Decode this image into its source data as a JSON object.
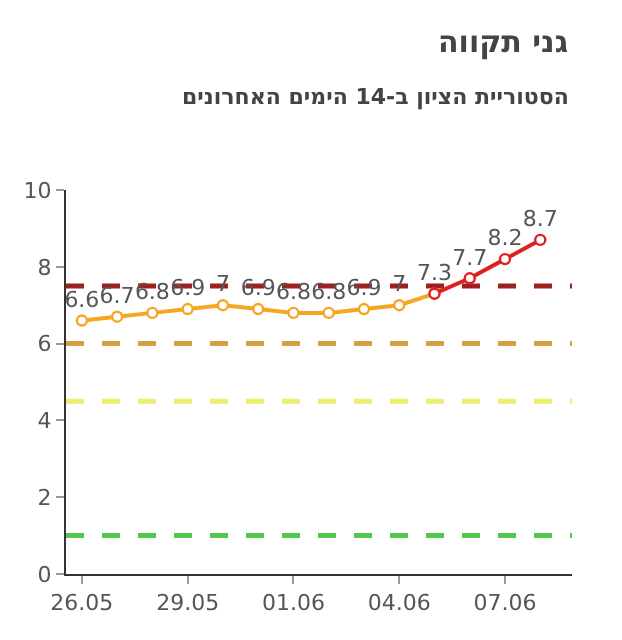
{
  "chart_data": {
    "type": "line",
    "title": "גני תקווה",
    "subtitle": "הסטוריית הציון ב-14 הימים האחרונים",
    "categories": [
      "26.05",
      null,
      null,
      "29.05",
      null,
      null,
      "01.06",
      null,
      null,
      "04.06",
      null,
      null,
      "07.06",
      null
    ],
    "series": [
      {
        "color": "#f5a623",
        "values": [
          6.6,
          6.7,
          6.8,
          6.9,
          7,
          6.9,
          6.8,
          6.8,
          6.9,
          7,
          7.3,
          null,
          null,
          null
        ],
        "value_labels": [
          "6.6",
          "6.7",
          "6.8",
          "6.9",
          "7",
          "6.9",
          "6.8",
          "6.8",
          "6.9",
          "7",
          "7.3",
          null,
          null,
          null
        ]
      },
      {
        "color": "#e02020",
        "values": [
          null,
          null,
          null,
          null,
          null,
          null,
          null,
          null,
          null,
          null,
          7.3,
          7.7,
          8.2,
          8.7
        ],
        "value_labels": [
          null,
          null,
          null,
          null,
          null,
          null,
          null,
          null,
          null,
          null,
          null,
          "7.7",
          "8.2",
          "8.7"
        ]
      }
    ],
    "ylim": [
      0,
      10
    ],
    "yticks": [
      0,
      2,
      4,
      6,
      8,
      10
    ],
    "grid": false,
    "legend": false,
    "marker": "circle",
    "line_style": "solid",
    "ref_lines": [
      {
        "axis": "y",
        "value": 7.5,
        "color": "#a02020",
        "line_style": "dashed"
      },
      {
        "axis": "y",
        "value": 6,
        "color": "#d4a040",
        "line_style": "dashed"
      },
      {
        "axis": "y",
        "value": 4.5,
        "color": "#eeee70",
        "line_style": "dashed"
      },
      {
        "axis": "y",
        "value": 1,
        "color": "#50c850",
        "line_style": "dashed"
      }
    ]
  }
}
